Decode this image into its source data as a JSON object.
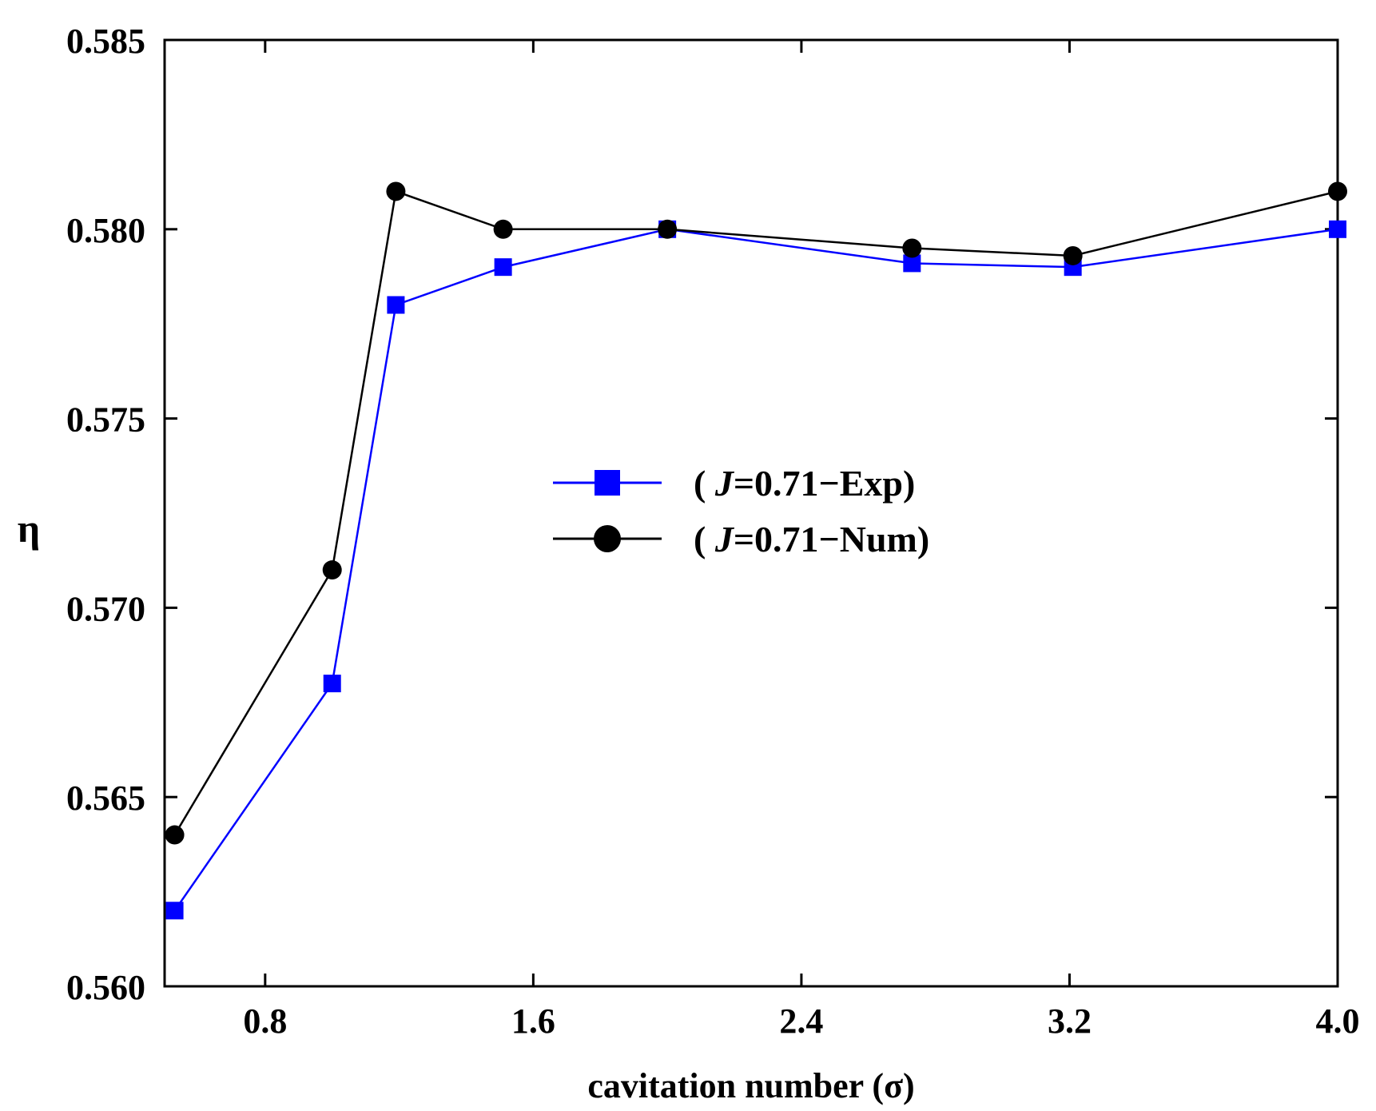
{
  "chart_data": {
    "type": "line",
    "title": "",
    "xlabel": "cavitation number (σ)",
    "ylabel": "η",
    "xlim": [
      0.5,
      4.0
    ],
    "ylim": [
      0.56,
      0.585
    ],
    "x_ticks": [
      0.8,
      1.6,
      2.4,
      3.2,
      4.0
    ],
    "x_tick_labels": [
      "0.8",
      "1.6",
      "2.4",
      "3.2",
      "4.0"
    ],
    "y_ticks": [
      0.56,
      0.565,
      0.57,
      0.575,
      0.58,
      0.585
    ],
    "y_tick_labels": [
      "0.560",
      "0.565",
      "0.570",
      "0.575",
      "0.580",
      "0.585"
    ],
    "grid": false,
    "legend_position": "center-right",
    "series": [
      {
        "name": "( J=0.71−Exp)",
        "legend_prefix": "( ",
        "legend_italic": "J",
        "legend_suffix": "=0.71−Exp)",
        "color": "#0000ff",
        "marker": "square",
        "x": [
          0.53,
          1.0,
          1.19,
          1.51,
          2.0,
          2.73,
          3.21,
          4.0
        ],
        "y": [
          0.562,
          0.568,
          0.578,
          0.579,
          0.58,
          0.5791,
          0.579,
          0.58
        ]
      },
      {
        "name": "( J=0.71−Num)",
        "legend_prefix": "( ",
        "legend_italic": "J",
        "legend_suffix": "=0.71−Num)",
        "color": "#000000",
        "marker": "circle",
        "x": [
          0.53,
          1.0,
          1.19,
          1.51,
          2.0,
          2.73,
          3.21,
          4.0
        ],
        "y": [
          0.564,
          0.571,
          0.581,
          0.58,
          0.58,
          0.5795,
          0.5793,
          0.581
        ]
      }
    ]
  }
}
